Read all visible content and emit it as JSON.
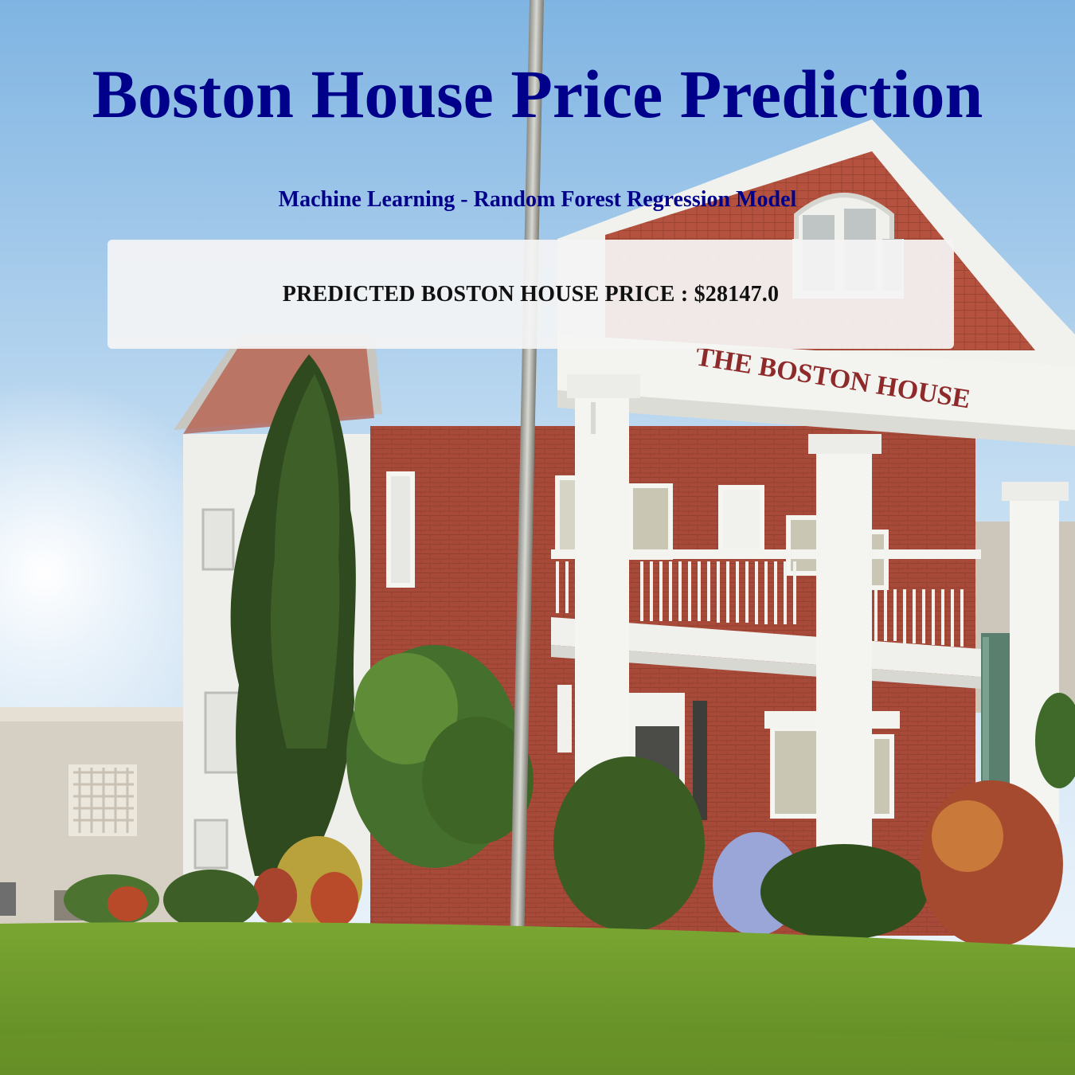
{
  "header": {
    "title": "Boston House Price Prediction",
    "subtitle": "Machine Learning - Random Forest Regression Model"
  },
  "result": {
    "text": "PREDICTED BOSTON HOUSE PRICE : $28147.0"
  },
  "background": {
    "sign_text": "THE BOSTON HOUSE",
    "colors": {
      "sky_top": "#7fb4e2",
      "brick": "#a84a3a",
      "trim": "#f2f2ee",
      "lawn": "#6f9a2c",
      "title": "#00008b"
    }
  }
}
